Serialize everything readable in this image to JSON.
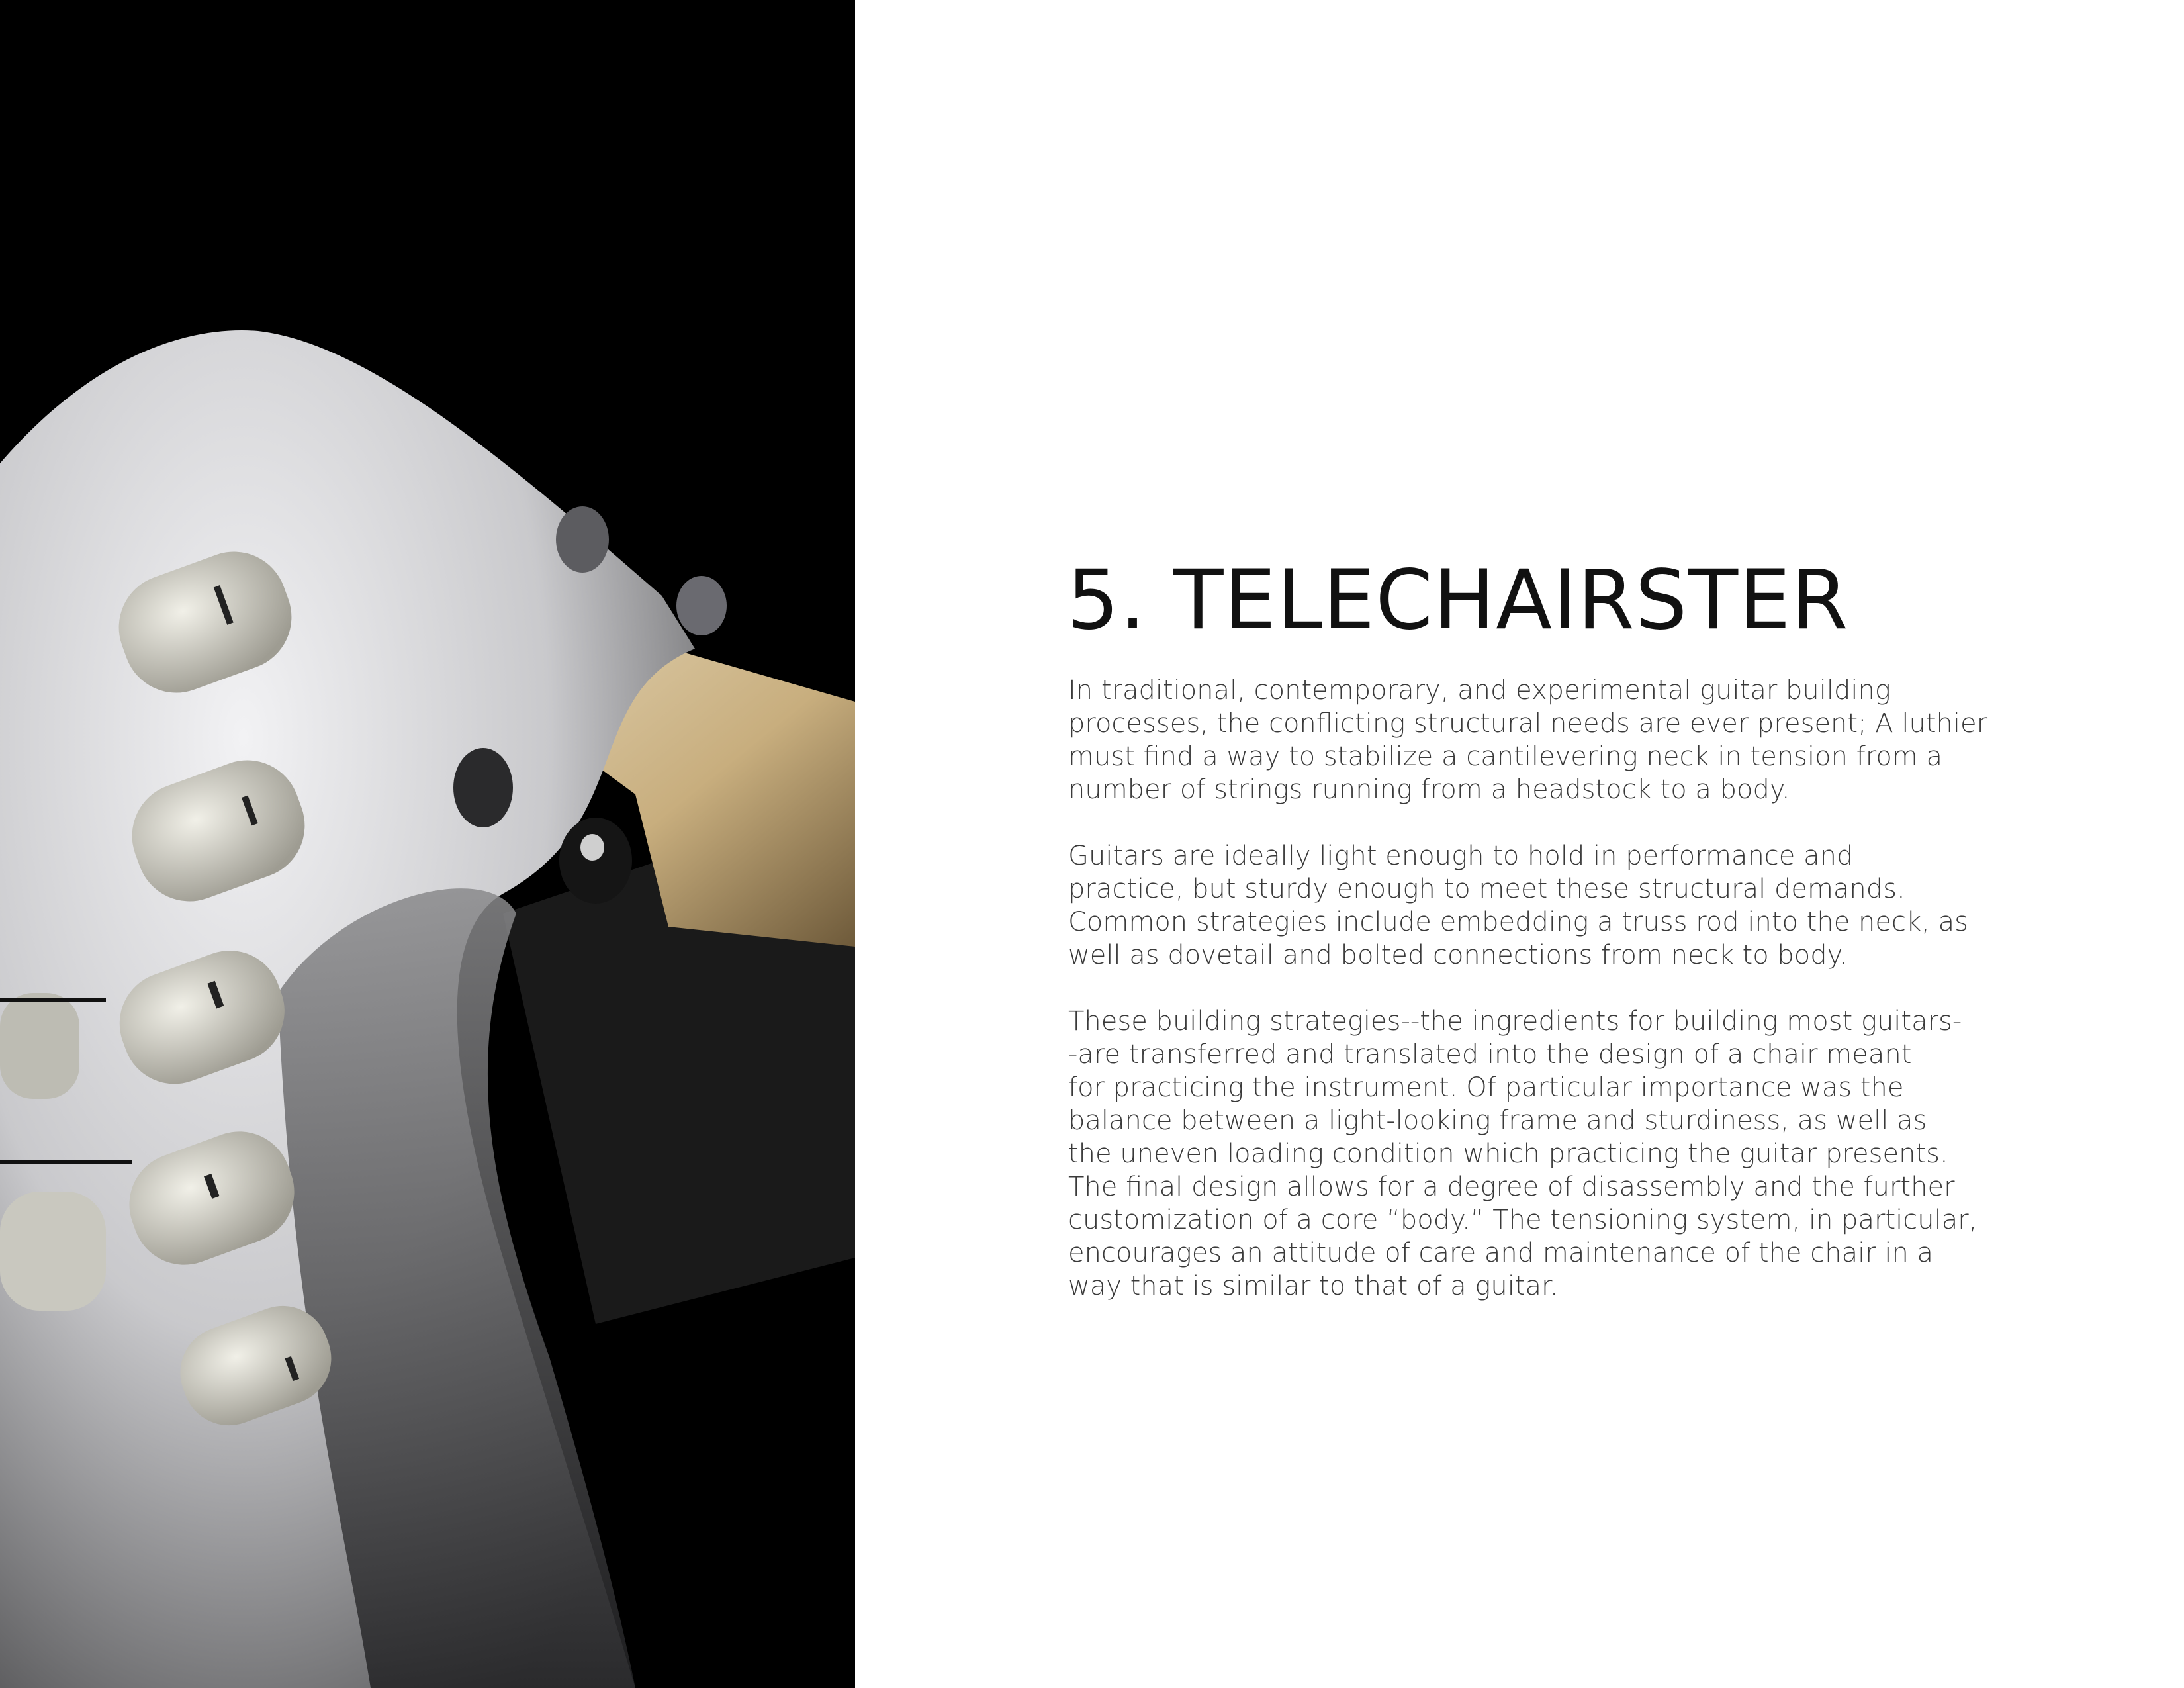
{
  "page": {
    "title": "5. TELECHAIRSTER",
    "paragraphs": [
      [
        "In traditional, contemporary, and experimental guitar building",
        "processes, the conflicting structural needs are ever present; A luthier",
        "must find a way to stabilize a cantilevering neck in tension from a",
        "number of strings running from a headstock to a body."
      ],
      [
        "Guitars are ideally light enough to hold in performance and",
        "practice, but sturdy enough to meet these structural demands.",
        "Common strategies include embedding a truss rod into the neck, as",
        "well as dovetail and bolted connections from neck to body."
      ],
      [
        "These building strategies--the ingredients for building most guitars-",
        "-are transferred and translated into the design of a chair meant",
        "for practicing the instrument. Of particular importance was the",
        "balance between a light-looking frame and sturdiness, as well as",
        "the uneven loading condition which practicing the guitar presents.",
        "The final design allows for a degree of disassembly and the further",
        "customization of a core “body.” The tensioning system, in particular,",
        "encourages an attitude of care and maintenance of the chair in a",
        "way that is similar to that of a guitar."
      ]
    ]
  },
  "colors": {
    "photo_background": "#000000",
    "page_background": "#ffffff",
    "title": "#111111",
    "body_text": "#3a3a3a",
    "headstock_white": "#e6e6e8",
    "tuner_peg": "#d9d8d0",
    "wood_neck": "#cbb48a"
  }
}
